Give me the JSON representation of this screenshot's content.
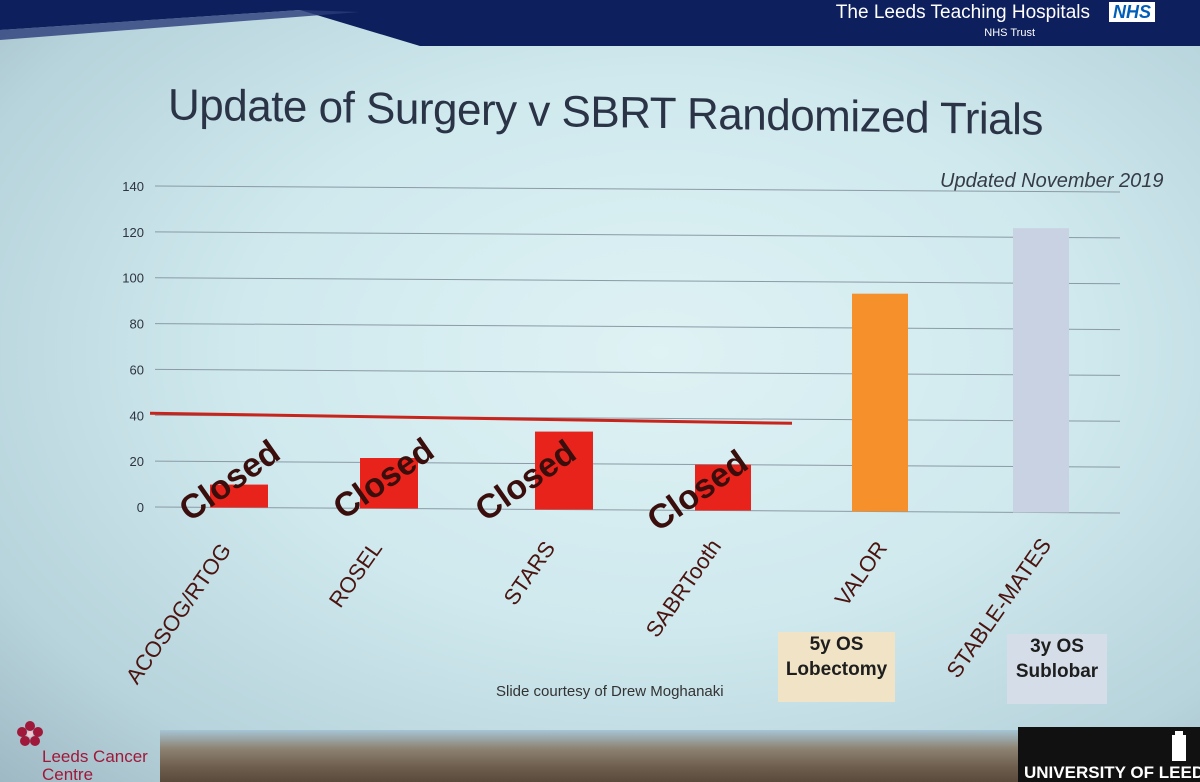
{
  "header": {
    "org_name": "The Leeds Teaching Hospitals",
    "nhs_logo": "NHS",
    "trust_label": "NHS Trust"
  },
  "title": "Update of Surgery v SBRT Randomized Trials",
  "updated_label": "Updated November 2019",
  "colors": {
    "closed_bar": "#e8231b",
    "valor_bar": "#f5902a",
    "stable_bar": "#c9d2e2",
    "threshold_line": "#c8241c",
    "header_band": "#0d1f5c"
  },
  "chart_data": {
    "type": "bar",
    "categories": [
      "ACOSOG/RTOG",
      "ROSEL",
      "STARS",
      "SABRTooth",
      "VALOR",
      "STABLE-MATES"
    ],
    "values": [
      10,
      22,
      34,
      20,
      95,
      124
    ],
    "status": [
      "Closed",
      "Closed",
      "Closed",
      "Closed",
      "",
      ""
    ],
    "ylim": [
      0,
      140
    ],
    "yticks": [
      0,
      20,
      40,
      60,
      80,
      100,
      120,
      140
    ],
    "threshold": 40,
    "grid": true,
    "legend": "none",
    "annotations": [
      {
        "category": "VALOR",
        "lines": [
          "5y OS",
          "Lobectomy"
        ]
      },
      {
        "category": "STABLE-MATES",
        "lines": [
          "3y OS",
          "Sublobar"
        ]
      }
    ]
  },
  "footer": {
    "courtesy": "Slide courtesy of Drew Moghanaki",
    "left_logo": "Leeds Cancer Centre",
    "left_logo_line1": "Leeds Cancer",
    "left_logo_line2": "Centre",
    "right_logo": "UNIVERSITY OF LEEDS"
  }
}
